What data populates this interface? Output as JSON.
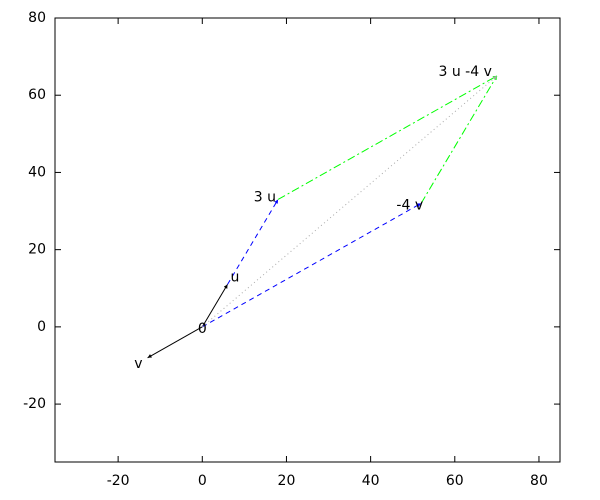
{
  "chart_data": {
    "type": "vector",
    "xlim": [
      -35,
      85
    ],
    "ylim": [
      -35,
      80
    ],
    "xticks": [
      -20,
      0,
      20,
      40,
      60,
      80
    ],
    "yticks": [
      -20,
      0,
      20,
      40,
      60,
      80
    ],
    "segments": [
      {
        "x": [
          0,
          6
        ],
        "y": [
          0,
          11
        ],
        "color": "#000000",
        "style": "solid"
      },
      {
        "x": [
          0,
          -13
        ],
        "y": [
          0,
          -8
        ],
        "color": "#000000",
        "style": "solid"
      },
      {
        "x": [
          6,
          18
        ],
        "y": [
          11,
          33
        ],
        "color": "#0000ff",
        "style": "dashed"
      },
      {
        "x": [
          0,
          52
        ],
        "y": [
          0,
          32
        ],
        "color": "#0000ff",
        "style": "dashed"
      },
      {
        "x": [
          18,
          70
        ],
        "y": [
          33,
          65
        ],
        "color": "#00ff00",
        "style": "dashdot"
      },
      {
        "x": [
          52,
          70
        ],
        "y": [
          32,
          65
        ],
        "color": "#00ff00",
        "style": "dashdot"
      },
      {
        "x": [
          0,
          70
        ],
        "y": [
          0,
          65
        ],
        "color": "#aaaaaa",
        "style": "dotted"
      }
    ],
    "labels": [
      {
        "text": "0",
        "x": 0,
        "y": 0
      },
      {
        "text": "u",
        "x": 6,
        "y": 11
      },
      {
        "text": "v",
        "x": -13,
        "y": -8
      },
      {
        "text": "3 u",
        "x": 18,
        "y": 33
      },
      {
        "text": "-4 v",
        "x": 52,
        "y": 32
      },
      {
        "text": "3 u -4 v",
        "x": 70,
        "y": 65
      }
    ]
  }
}
